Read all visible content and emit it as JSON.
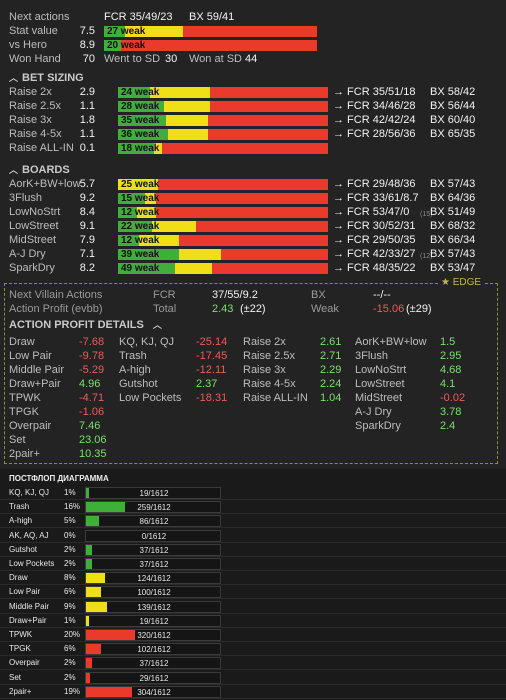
{
  "header": {
    "next_actions": {
      "label": "Next actions",
      "fcr": "FCR 35/49/23",
      "bx": "BX 59/41"
    },
    "stat_value": {
      "label": "Stat value",
      "value": "7.5",
      "bar": "27 weak",
      "g": 10,
      "y": 27,
      "r": 63
    },
    "vs_hero": {
      "label": "vs Hero",
      "value": "8.9",
      "bar": "20 weak",
      "g": 8,
      "y": 0,
      "r": 92
    },
    "won_hand": {
      "label": "Won Hand",
      "value": "70",
      "went_label": "Went to SD",
      "went_value": "30",
      "won_label": "Won at SD",
      "won_value": "44"
    }
  },
  "bet_sizing": {
    "title": "BET SIZING",
    "rows": [
      {
        "label": "Raise 2x",
        "value": "2.9",
        "bar": "24 weak",
        "g": 15,
        "y": 29,
        "r": 56,
        "fcr": "→ FCR 35/51/18",
        "bx": "BX 58/42"
      },
      {
        "label": "Raise 2.5x",
        "value": "1.1",
        "bar": "28 weak",
        "g": 22,
        "y": 22,
        "r": 56,
        "fcr": "→ FCR 34/46/28",
        "bx": "BX 56/44"
      },
      {
        "label": "Raise 3x",
        "value": "1.8",
        "bar": "35 weak",
        "g": 23,
        "y": 20,
        "r": 57,
        "fcr": "→ FCR 42/42/24",
        "bx": "BX 60/40"
      },
      {
        "label": "Raise 4-5x",
        "value": "1.1",
        "bar": "36 weak",
        "g": 24,
        "y": 19,
        "r": 57,
        "fcr": "→ FCR 28/56/36",
        "bx": "BX 65/35"
      },
      {
        "label": "Raise ALL-IN",
        "value": "0.1",
        "bar": "18 weak",
        "g": 17,
        "y": 4,
        "r": 79,
        "fcr": "",
        "bx": ""
      }
    ]
  },
  "boards": {
    "title": "BOARDS",
    "rows": [
      {
        "label": "AorK+BW+low",
        "value": "5.7",
        "bar": "25 weak",
        "g": 0,
        "y": 19,
        "r": 81,
        "fcr": "→ FCR 29/48/36",
        "note": "",
        "bx": "BX 57/43"
      },
      {
        "label": "3Flush",
        "value": "9.2",
        "bar": "15 weak",
        "g": 13,
        "y": 5,
        "r": 82,
        "fcr": "→ FCR 33/61/8.7",
        "note": "",
        "bx": "BX 64/36"
      },
      {
        "label": "LowNoStrt",
        "value": "8.4",
        "bar": "12 weak",
        "g": 9,
        "y": 9,
        "r": 82,
        "fcr": "→ FCR 53/47/0",
        "note": "(15)",
        "bx": "BX 51/49"
      },
      {
        "label": "LowStreet",
        "value": "9.1",
        "bar": "22 weak",
        "g": 16,
        "y": 21,
        "r": 63,
        "fcr": "→ FCR 30/52/31",
        "note": "",
        "bx": "BX 68/32"
      },
      {
        "label": "MidStreet",
        "value": "7.9",
        "bar": "12 weak",
        "g": 10,
        "y": 19,
        "r": 71,
        "fcr": "→ FCR 29/50/35",
        "note": "",
        "bx": "BX 66/34"
      },
      {
        "label": "A-J Dry",
        "value": "7.1",
        "bar": "39 weak",
        "g": 29,
        "y": 20,
        "r": 51,
        "fcr": "→ FCR 42/33/27",
        "note": "(12)",
        "bx": "BX 57/43"
      },
      {
        "label": "SparkDry",
        "value": "8.2",
        "bar": "49 weak",
        "g": 27,
        "y": 18,
        "r": 55,
        "fcr": "→ FCR 48/35/22",
        "note": "",
        "bx": "BX 53/47"
      }
    ]
  },
  "edge": {
    "tag": "EDGE",
    "next_villain": {
      "label": "Next Villain Actions",
      "fcr_label": "FCR",
      "fcr": "37/55/9.2",
      "bx_label": "BX",
      "bx": "--/--"
    },
    "action_profit": {
      "label": "Action Profit (evbb)",
      "total_label": "Total",
      "total": "2.43",
      "total_note": "(±22)",
      "weak_label": "Weak",
      "weak": "-15.06",
      "weak_note": "(±29)"
    },
    "details_title": "ACTION PROFIT DETAILS",
    "col1": [
      {
        "label": "Draw",
        "value": "-7.68",
        "neg": true
      },
      {
        "label": "Low Pair",
        "value": "-9.78",
        "neg": true
      },
      {
        "label": "Middle Pair",
        "value": "-5.29",
        "neg": true
      },
      {
        "label": "Draw+Pair",
        "value": "4.96",
        "neg": false
      },
      {
        "label": "TPWK",
        "value": "-4.71",
        "neg": true
      },
      {
        "label": "TPGK",
        "value": "-1.06",
        "neg": true
      },
      {
        "label": "Overpair",
        "value": "7.46",
        "neg": false
      },
      {
        "label": "Set",
        "value": "23.06",
        "neg": false
      },
      {
        "label": "2pair+",
        "value": "10.35",
        "neg": false
      }
    ],
    "col2": [
      {
        "label": "KQ, KJ, QJ",
        "value": "-25.14",
        "neg": true
      },
      {
        "label": "Trash",
        "value": "-17.45",
        "neg": true
      },
      {
        "label": "A-high",
        "value": "-12.11",
        "neg": true
      },
      {
        "label": "Gutshot",
        "value": "2.37",
        "neg": false
      },
      {
        "label": "Low Pockets",
        "value": "-18.31",
        "neg": true
      }
    ],
    "col3": [
      {
        "label": "Raise 2x",
        "value": "2.61",
        "neg": false
      },
      {
        "label": "Raise 2.5x",
        "value": "2.71",
        "neg": false
      },
      {
        "label": "Raise 3x",
        "value": "2.29",
        "neg": false
      },
      {
        "label": "Raise 4-5x",
        "value": "2.24",
        "neg": false
      },
      {
        "label": "Raise ALL-IN",
        "value": "1.04",
        "neg": false
      }
    ],
    "col4": [
      {
        "label": "AorK+BW+low",
        "value": "1.5",
        "neg": false
      },
      {
        "label": "3Flush",
        "value": "2.95",
        "neg": false
      },
      {
        "label": "LowNoStrt",
        "value": "4.68",
        "neg": false
      },
      {
        "label": "LowStreet",
        "value": "4.1",
        "neg": false
      },
      {
        "label": "MidStreet",
        "value": "-0.02",
        "neg": true
      },
      {
        "label": "A-J Dry",
        "value": "3.78",
        "neg": false
      },
      {
        "label": "SparkDry",
        "value": "2.4",
        "neg": false
      }
    ]
  },
  "postflop": {
    "title": "ПОСТФЛОП ДИАГРАММА",
    "rows": [
      {
        "label": "KQ, KJ, QJ",
        "pct": "1%",
        "count": "19/1612",
        "frac": 0.012,
        "color": "#3fae3a"
      },
      {
        "label": "Trash",
        "pct": "16%",
        "count": "259/1612",
        "frac": 0.16,
        "color": "#3fae3a"
      },
      {
        "label": "A-high",
        "pct": "5%",
        "count": "86/1612",
        "frac": 0.053,
        "color": "#3fae3a"
      },
      {
        "label": "AK, AQ, AJ",
        "pct": "0%",
        "count": "0/1612",
        "frac": 0,
        "color": "#3fae3a"
      },
      {
        "label": "Gutshot",
        "pct": "2%",
        "count": "37/1612",
        "frac": 0.023,
        "color": "#3fae3a"
      },
      {
        "label": "Low Pockets",
        "pct": "2%",
        "count": "37/1612",
        "frac": 0.023,
        "color": "#3fae3a"
      },
      {
        "label": "Draw",
        "pct": "8%",
        "count": "124/1612",
        "frac": 0.077,
        "color": "#f0de17"
      },
      {
        "label": "Low Pair",
        "pct": "6%",
        "count": "100/1612",
        "frac": 0.062,
        "color": "#f0de17"
      },
      {
        "label": "Middle Pair",
        "pct": "9%",
        "count": "139/1612",
        "frac": 0.086,
        "color": "#f0de17"
      },
      {
        "label": "Draw+Pair",
        "pct": "1%",
        "count": "19/1612",
        "frac": 0.012,
        "color": "#f0de17"
      },
      {
        "label": "TPWK",
        "pct": "20%",
        "count": "320/1612",
        "frac": 0.199,
        "color": "#ea3a2b"
      },
      {
        "label": "TPGK",
        "pct": "6%",
        "count": "102/1612",
        "frac": 0.063,
        "color": "#ea3a2b"
      },
      {
        "label": "Overpair",
        "pct": "2%",
        "count": "37/1612",
        "frac": 0.023,
        "color": "#ea3a2b"
      },
      {
        "label": "Set",
        "pct": "2%",
        "count": "29/1612",
        "frac": 0.018,
        "color": "#ea3a2b"
      },
      {
        "label": "2pair+",
        "pct": "19%",
        "count": "304/1612",
        "frac": 0.189,
        "color": "#ea3a2b"
      }
    ]
  }
}
